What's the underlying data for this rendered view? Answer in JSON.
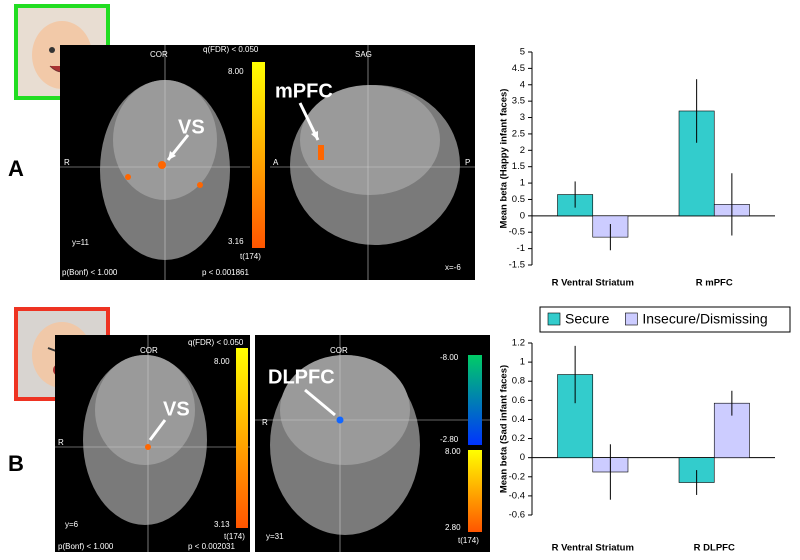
{
  "figure": {
    "label_a": "A",
    "label_b": "B",
    "brain_a": {
      "cor": "COR",
      "sag": "SAG",
      "fdr": "q(FDR) < 0.050",
      "bar_max": "8.00",
      "bar_min": "3.16",
      "tstat": "t(174)",
      "slice_cor": "y=11",
      "slice_sag": "x=-6",
      "bonf": "p(Bonf) < 1.000",
      "p": "p < 0.001861",
      "right": "R",
      "anterior": "A",
      "posterior": "P",
      "vs": "VS",
      "mpfc": "mPFC"
    },
    "brain_b1": {
      "cor": "COR",
      "fdr": "q(FDR) < 0.050",
      "bar_max": "8.00",
      "bar_min": "3.13",
      "tstat": "t(174)",
      "slice": "y=6",
      "bonf": "p(Bonf) < 1.000",
      "p": "p < 0.002031",
      "right": "R",
      "vs": "VS"
    },
    "brain_b2": {
      "cor": "COR",
      "neg_max": "-8.00",
      "neg_min": "-2.80",
      "pos_max": "8.00",
      "pos_min": "2.80",
      "tstat": "t(174)",
      "slice": "y=31",
      "right": "R",
      "dlpfc": "DLPFC"
    }
  },
  "chart_data": [
    {
      "type": "bar",
      "y_label": "Mean beta (Happy infant faces)",
      "categories": [
        "R Ventral Striatum",
        "R mPFC"
      ],
      "series": [
        {
          "name": "Secure",
          "color": "#33cccc",
          "values": [
            0.65,
            3.2
          ],
          "errors": [
            0.4,
            0.97
          ]
        },
        {
          "name": "Insecure/Dismissing",
          "color": "#ccccff",
          "values": [
            -0.65,
            0.35
          ],
          "errors": [
            0.4,
            0.95
          ]
        }
      ],
      "ylim": [
        -1.5,
        5
      ],
      "yticks": [
        -1.5,
        -1,
        -0.5,
        0,
        0.5,
        1,
        1.5,
        2,
        2.5,
        3,
        3.5,
        4,
        4.5,
        5
      ]
    },
    {
      "type": "bar",
      "y_label": "Mean beta (Sad infant faces)",
      "categories": [
        "R Ventral Striatum",
        "R DLPFC"
      ],
      "series": [
        {
          "name": "Secure",
          "color": "#33cccc",
          "values": [
            0.87,
            -0.26
          ],
          "errors": [
            0.3,
            0.13
          ]
        },
        {
          "name": "Insecure/Dismissing",
          "color": "#ccccff",
          "values": [
            -0.15,
            0.57
          ],
          "errors": [
            0.29,
            0.13
          ]
        }
      ],
      "ylim": [
        -0.6,
        1.2
      ],
      "yticks": [
        -0.6,
        -0.4,
        -0.2,
        0,
        0.2,
        0.4,
        0.6,
        0.8,
        1,
        1.2
      ],
      "legend": "top"
    }
  ]
}
